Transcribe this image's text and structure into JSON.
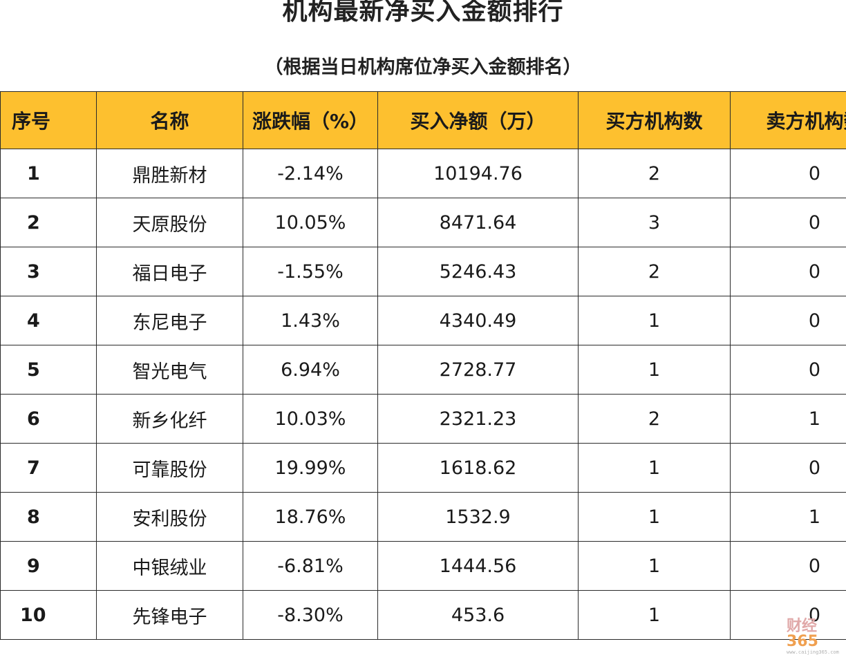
{
  "title": "机构最新净买入金额排行",
  "subtitle": "（根据当日机构席位净买入金额排名）",
  "columns": [
    "序号",
    "名称",
    "涨跌幅（%）",
    "买入净额（万）",
    "买方机构数",
    "卖方机构数"
  ],
  "rows": [
    [
      "1",
      "鼎胜新材",
      "-2.14%",
      "10194.76",
      "2",
      "0"
    ],
    [
      "2",
      "天原股份",
      "10.05%",
      "8471.64",
      "3",
      "0"
    ],
    [
      "3",
      "福日电子",
      "-1.55%",
      "5246.43",
      "2",
      "0"
    ],
    [
      "4",
      "东尼电子",
      "1.43%",
      "4340.49",
      "1",
      "0"
    ],
    [
      "5",
      "智光电气",
      "6.94%",
      "2728.77",
      "1",
      "0"
    ],
    [
      "6",
      "新乡化纤",
      "10.03%",
      "2321.23",
      "2",
      "1"
    ],
    [
      "7",
      "可靠股份",
      "19.99%",
      "1618.62",
      "1",
      "0"
    ],
    [
      "8",
      "安利股份",
      "18.76%",
      "1532.9",
      "1",
      "1"
    ],
    [
      "9",
      "中银绒业",
      "-6.81%",
      "1444.56",
      "1",
      "0"
    ],
    [
      "10",
      "先锋电子",
      "-8.30%",
      "453.6",
      "1",
      "0"
    ]
  ],
  "watermark": {
    "brand_cn": "财经",
    "brand_num": "365",
    "url": "www.caijing365.com"
  },
  "colors": {
    "header_bg": "#FDC02F",
    "border": "#2a2a2a"
  }
}
